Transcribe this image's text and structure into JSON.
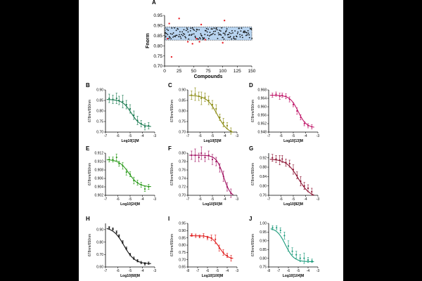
{
  "chart_data": [
    {
      "panel": "A",
      "type": "scatter",
      "xlabel": "Compounds",
      "ylabel": "Fnorm",
      "xlim": [
        0,
        150
      ],
      "ylim": [
        0.7,
        0.95
      ],
      "xticks": [
        "0",
        "25",
        "50",
        "75",
        "100",
        "125",
        "150"
      ],
      "yticks": [
        "0.70",
        "0.75",
        "0.80",
        "0.85",
        "0.90",
        "0.95"
      ],
      "band": [
        0.828,
        0.893
      ],
      "band_color": "#b8d4f0",
      "outlier_color": "#e8232a",
      "outliers": [
        [
          5,
          0.835
        ],
        [
          8,
          0.91
        ],
        [
          12,
          0.745
        ],
        [
          25,
          0.935
        ],
        [
          40,
          0.82
        ],
        [
          48,
          0.81
        ],
        [
          55,
          0.835
        ],
        [
          60,
          0.82
        ],
        [
          63,
          0.905
        ],
        [
          70,
          0.83
        ],
        [
          100,
          0.815
        ],
        [
          103,
          0.925
        ]
      ],
      "inlier_count": 150,
      "inlier_seed": 7
    },
    {
      "panel": "B",
      "type": "line",
      "xlabel": "Log10[1]M",
      "ylabel": "678nm/650nm",
      "color": "#1a7a50",
      "xlim": [
        -7,
        -3
      ],
      "xticks": [
        "-7",
        "-6",
        "-5",
        "-4",
        "-3"
      ],
      "ylim": [
        0.7,
        0.9
      ],
      "yticks": [
        "0.70",
        "0.75",
        "0.80",
        "0.85",
        "0.90"
      ],
      "fit": {
        "top": 0.855,
        "bottom": 0.725,
        "ec50": -4.9,
        "hill": 1.2
      },
      "x": [
        -6.7,
        -6.4,
        -6.1,
        -5.9,
        -5.6,
        -5.3,
        -5.0,
        -4.7,
        -4.4,
        -4.1,
        -3.8,
        -3.5
      ],
      "y": [
        0.86,
        0.855,
        0.86,
        0.85,
        0.845,
        0.83,
        0.81,
        0.78,
        0.755,
        0.74,
        0.725,
        0.73
      ],
      "err": [
        0.02,
        0.02,
        0.025,
        0.02,
        0.03,
        0.02,
        0.02,
        0.02,
        0.02,
        0.015,
        0.015,
        0.015
      ]
    },
    {
      "panel": "C",
      "type": "line",
      "xlabel": "Log10[5]M",
      "ylabel": "678nm/650nm",
      "color": "#8a8a10",
      "xlim": [
        -7,
        -3
      ],
      "xticks": [
        "-7",
        "-6",
        "-5",
        "-4",
        "-3"
      ],
      "ylim": [
        0.7,
        0.9
      ],
      "yticks": [
        "0.70",
        "0.75",
        "0.80",
        "0.85",
        "0.90"
      ],
      "fit": {
        "top": 0.875,
        "bottom": 0.69,
        "ec50": -4.6,
        "hill": 1.0
      },
      "x": [
        -6.7,
        -6.4,
        -6.1,
        -5.9,
        -5.6,
        -5.3,
        -5.0,
        -4.7,
        -4.4,
        -4.1,
        -3.8,
        -3.5
      ],
      "y": [
        0.875,
        0.88,
        0.87,
        0.86,
        0.865,
        0.85,
        0.83,
        0.81,
        0.77,
        0.745,
        0.73,
        0.705
      ],
      "err": [
        0.02,
        0.03,
        0.02,
        0.03,
        0.02,
        0.02,
        0.02,
        0.02,
        0.015,
        0.02,
        0.015,
        0.015
      ]
    },
    {
      "panel": "D",
      "type": "line",
      "xlabel": "Log10[13]M",
      "ylabel": "678nm/650nm",
      "color": "#c0186a",
      "xlim": [
        -7,
        -3
      ],
      "xticks": [
        "-7",
        "-6",
        "-5",
        "-4",
        "-3"
      ],
      "ylim": [
        0.948,
        0.968
      ],
      "yticks": [
        "0.948",
        "0.952",
        "0.956",
        "0.960",
        "0.964",
        "0.968"
      ],
      "fit": {
        "top": 0.9655,
        "bottom": 0.95,
        "ec50": -4.6,
        "hill": 1.3
      },
      "x": [
        -6.7,
        -6.4,
        -6.1,
        -5.9,
        -5.6,
        -5.3,
        -5.0,
        -4.7,
        -4.4,
        -4.1,
        -3.8,
        -3.5
      ],
      "y": [
        0.9655,
        0.966,
        0.965,
        0.9655,
        0.965,
        0.9635,
        0.961,
        0.958,
        0.955,
        0.952,
        0.951,
        0.9505
      ],
      "err": [
        0.001,
        0.001,
        0.0015,
        0.001,
        0.0012,
        0.0012,
        0.001,
        0.0015,
        0.0012,
        0.001,
        0.001,
        0.001
      ]
    },
    {
      "panel": "E",
      "type": "line",
      "xlabel": "Log10[24]M",
      "ylabel": "678nm/650nm",
      "color": "#2a9a1a",
      "xlim": [
        -7,
        -3
      ],
      "xticks": [
        "-7",
        "-6",
        "-5",
        "-4",
        "-3"
      ],
      "ylim": [
        0.902,
        0.912
      ],
      "yticks": [
        "0.902",
        "0.904",
        "0.906",
        "0.908",
        "0.910",
        "0.912"
      ],
      "fit": {
        "top": 0.9105,
        "bottom": 0.904,
        "ec50": -5.1,
        "hill": 1.1
      },
      "x": [
        -6.7,
        -6.4,
        -6.1,
        -5.9,
        -5.6,
        -5.3,
        -5.0,
        -4.7,
        -4.4,
        -4.1,
        -3.8,
        -3.5
      ],
      "y": [
        0.9105,
        0.9105,
        0.911,
        0.9095,
        0.909,
        0.9075,
        0.907,
        0.9055,
        0.905,
        0.9045,
        0.9035,
        0.904
      ],
      "err": [
        0.0006,
        0.0006,
        0.0008,
        0.0006,
        0.0008,
        0.0007,
        0.0006,
        0.0008,
        0.0006,
        0.0006,
        0.0006,
        0.0006
      ]
    },
    {
      "panel": "F",
      "type": "line",
      "xlabel": "Log10[50]M",
      "ylabel": "678nm/650nm",
      "color": "#a01060",
      "xlim": [
        -7,
        -3
      ],
      "xticks": [
        "-7",
        "-6",
        "-5",
        "-4",
        "-3"
      ],
      "ylim": [
        0.7,
        0.8
      ],
      "yticks": [
        "0.70",
        "0.72",
        "0.74",
        "0.76",
        "0.78",
        "0.80"
      ],
      "fit": {
        "top": 0.795,
        "bottom": 0.695,
        "ec50": -4.1,
        "hill": 1.5
      },
      "x": [
        -6.7,
        -6.4,
        -6.1,
        -5.9,
        -5.6,
        -5.3,
        -5.0,
        -4.7,
        -4.4,
        -4.1,
        -3.8,
        -3.5
      ],
      "y": [
        0.795,
        0.795,
        0.79,
        0.8,
        0.79,
        0.795,
        0.785,
        0.78,
        0.765,
        0.745,
        0.72,
        0.705
      ],
      "err": [
        0.01,
        0.015,
        0.01,
        0.015,
        0.01,
        0.01,
        0.012,
        0.01,
        0.01,
        0.012,
        0.01,
        0.01
      ]
    },
    {
      "panel": "G",
      "type": "line",
      "xlabel": "Log10[82]M",
      "ylabel": "678nm/650nm",
      "color": "#8a1030",
      "xlim": [
        -7,
        -3
      ],
      "xticks": [
        "-7",
        "-6",
        "-5",
        "-4",
        "-3"
      ],
      "ylim": [
        0.76,
        0.94
      ],
      "yticks": [
        "0.76",
        "0.80",
        "0.84",
        "0.88",
        "0.92"
      ],
      "fit": {
        "top": 0.915,
        "bottom": 0.75,
        "ec50": -4.6,
        "hill": 0.9
      },
      "x": [
        -6.7,
        -6.4,
        -6.1,
        -5.9,
        -5.6,
        -5.3,
        -5.0,
        -4.7,
        -4.4,
        -4.1,
        -3.8,
        -3.5
      ],
      "y": [
        0.92,
        0.915,
        0.91,
        0.915,
        0.9,
        0.895,
        0.87,
        0.845,
        0.82,
        0.8,
        0.79,
        0.775
      ],
      "err": [
        0.015,
        0.015,
        0.02,
        0.015,
        0.015,
        0.015,
        0.02,
        0.015,
        0.02,
        0.015,
        0.015,
        0.015
      ]
    },
    {
      "panel": "H",
      "type": "line",
      "xlabel": "Log10[68]M",
      "ylabel": "678nm/650nm",
      "color": "#111111",
      "xlim": [
        -7,
        -3
      ],
      "xticks": [
        "-7",
        "-6",
        "-5",
        "-4",
        "-3"
      ],
      "ylim": [
        0.6,
        0.95
      ],
      "yticks": [
        "0.60",
        "0.70",
        "0.80",
        "0.90"
      ],
      "fit": {
        "top": 0.92,
        "bottom": 0.625,
        "ec50": -5.5,
        "hill": 1.0
      },
      "x": [
        -6.7,
        -6.4,
        -6.1,
        -5.9,
        -5.6,
        -5.3,
        -5.0,
        -4.7,
        -4.4,
        -4.1,
        -3.8,
        -3.5
      ],
      "y": [
        0.915,
        0.905,
        0.88,
        0.85,
        0.8,
        0.75,
        0.7,
        0.67,
        0.65,
        0.635,
        0.625,
        0.63
      ],
      "err": [
        0.01,
        0.01,
        0.01,
        0.01,
        0.012,
        0.01,
        0.01,
        0.01,
        0.01,
        0.01,
        0.01,
        0.01
      ]
    },
    {
      "panel": "I",
      "type": "line",
      "xlabel": "Log10[100]M",
      "ylabel": "678nm/650nm",
      "color": "#e02020",
      "xlim": [
        -8,
        -3
      ],
      "xticks": [
        "-8",
        "-7",
        "-6",
        "-5",
        "-4",
        "-3"
      ],
      "ylim": [
        0.65,
        0.95
      ],
      "yticks": [
        "0.65",
        "0.70",
        "0.75",
        "0.80",
        "0.85",
        "0.90",
        "0.95"
      ],
      "fit": {
        "top": 0.865,
        "bottom": 0.705,
        "ec50": -4.8,
        "hill": 1.1
      },
      "x": [
        -7.6,
        -7.2,
        -6.8,
        -6.4,
        -6.0,
        -5.6,
        -5.2,
        -4.8,
        -4.4,
        -4.0,
        -3.6
      ],
      "y": [
        0.87,
        0.865,
        0.86,
        0.865,
        0.85,
        0.85,
        0.84,
        0.78,
        0.75,
        0.73,
        0.71
      ],
      "err": [
        0.01,
        0.012,
        0.01,
        0.015,
        0.012,
        0.02,
        0.03,
        0.02,
        0.02,
        0.015,
        0.02
      ]
    },
    {
      "panel": "J",
      "type": "line",
      "xlabel": "Log10[104]M",
      "ylabel": "678nm/650nm",
      "color": "#1a9a7a",
      "xlim": [
        -8,
        -3
      ],
      "xticks": [
        "-8",
        "-7",
        "-6",
        "-5",
        "-4",
        "-3"
      ],
      "ylim": [
        0.75,
        1.0
      ],
      "yticks": [
        "0.75",
        "0.80",
        "0.85",
        "0.90",
        "0.95",
        "1.00"
      ],
      "fit": {
        "top": 0.975,
        "bottom": 0.78,
        "ec50": -6.3,
        "hill": 1.0
      },
      "x": [
        -7.6,
        -7.2,
        -6.8,
        -6.4,
        -6.0,
        -5.6,
        -5.2,
        -4.8,
        -4.4,
        -4.0,
        -3.6
      ],
      "y": [
        0.975,
        0.975,
        0.96,
        0.93,
        0.87,
        0.84,
        0.82,
        0.8,
        0.8,
        0.79,
        0.785
      ],
      "err": [
        0.012,
        0.012,
        0.015,
        0.02,
        0.03,
        0.02,
        0.02,
        0.02,
        0.03,
        0.015,
        0.01
      ]
    }
  ]
}
